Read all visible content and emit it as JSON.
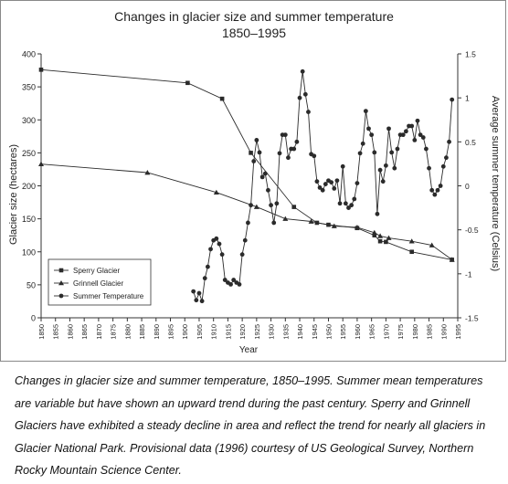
{
  "chart_data": {
    "type": "line",
    "title": "Changes in glacier size and summer temperature",
    "subtitle": "1850–1995",
    "xlabel": "Year",
    "ylabel": "Glacier size (hectares)",
    "y2label": "Average summer temperature (Celsius)",
    "xlim": [
      1850,
      1995
    ],
    "ylim": [
      0,
      400
    ],
    "y2lim": [
      -1.5,
      1.5
    ],
    "x_ticks": [
      1850,
      1855,
      1860,
      1865,
      1870,
      1875,
      1880,
      1885,
      1890,
      1895,
      1900,
      1905,
      1910,
      1915,
      1920,
      1925,
      1930,
      1935,
      1940,
      1945,
      1950,
      1955,
      1960,
      1965,
      1970,
      1975,
      1980,
      1985,
      1990,
      1995
    ],
    "y_ticks": [
      0,
      50,
      100,
      150,
      200,
      250,
      300,
      350,
      400
    ],
    "y2_ticks": [
      "-1.5",
      "-1",
      "-0.5",
      "0",
      "0.5",
      "1",
      "1.5"
    ],
    "grid": false,
    "legend_position": "bottom-left",
    "series": [
      {
        "name": "Sperry Glacier",
        "marker": "square",
        "axis": "left",
        "x": [
          1850,
          1901,
          1913,
          1923,
          1938,
          1946,
          1950,
          1960,
          1966,
          1968,
          1970,
          1979,
          1993
        ],
        "values": [
          376,
          356,
          332,
          250,
          168,
          144,
          141,
          136,
          125,
          116,
          115,
          100,
          88
        ]
      },
      {
        "name": "Grinnell Glacier",
        "marker": "triangle",
        "axis": "left",
        "x": [
          1850,
          1887,
          1911,
          1925,
          1935,
          1944,
          1952,
          1960,
          1966,
          1968,
          1971,
          1979,
          1986,
          1993
        ],
        "values": [
          233,
          220,
          190,
          168,
          150,
          146,
          139,
          137,
          129,
          124,
          121,
          116,
          110,
          88
        ]
      },
      {
        "name": "Summer Temperature",
        "marker": "circle",
        "axis": "right",
        "x": [
          1903,
          1904,
          1905,
          1906,
          1907,
          1908,
          1909,
          1910,
          1911,
          1912,
          1913,
          1914,
          1915,
          1916,
          1917,
          1918,
          1919,
          1920,
          1921,
          1922,
          1923,
          1924,
          1925,
          1926,
          1927,
          1928,
          1929,
          1930,
          1931,
          1932,
          1933,
          1934,
          1935,
          1936,
          1937,
          1938,
          1939,
          1940,
          1941,
          1942,
          1943,
          1944,
          1945,
          1946,
          1947,
          1948,
          1949,
          1950,
          1951,
          1952,
          1953,
          1954,
          1955,
          1956,
          1957,
          1958,
          1959,
          1960,
          1961,
          1962,
          1963,
          1964,
          1965,
          1966,
          1967,
          1968,
          1969,
          1970,
          1971,
          1972,
          1973,
          1974,
          1975,
          1976,
          1977,
          1978,
          1979,
          1980,
          1981,
          1982,
          1983,
          1984,
          1985,
          1986,
          1987,
          1988,
          1989,
          1990,
          1991,
          1992,
          1993
        ],
        "values": [
          -1.2,
          -1.3,
          -1.22,
          -1.31,
          -1.05,
          -0.92,
          -0.72,
          -0.62,
          -0.6,
          -0.66,
          -0.78,
          -1.07,
          -1.1,
          -1.12,
          -1.07,
          -1.1,
          -1.12,
          -0.78,
          -0.62,
          -0.42,
          -0.22,
          0.28,
          0.52,
          0.38,
          0.1,
          0.14,
          -0.05,
          -0.22,
          -0.42,
          -0.2,
          0.37,
          0.58,
          0.58,
          0.32,
          0.42,
          0.42,
          0.5,
          1.0,
          1.3,
          1.04,
          0.84,
          0.36,
          0.34,
          0.05,
          -0.02,
          -0.05,
          0.02,
          0.06,
          0.04,
          -0.03,
          0.06,
          -0.2,
          0.22,
          -0.2,
          -0.25,
          -0.22,
          -0.15,
          0.03,
          0.37,
          0.48,
          0.85,
          0.65,
          0.58,
          0.38,
          -0.32,
          0.18,
          0.05,
          0.23,
          0.65,
          0.38,
          0.2,
          0.42,
          0.58,
          0.58,
          0.62,
          0.68,
          0.68,
          0.52,
          0.74,
          0.58,
          0.55,
          0.42,
          0.2,
          -0.05,
          -0.1,
          -0.05,
          0.0,
          0.22,
          0.32,
          0.5,
          0.98
        ]
      }
    ]
  },
  "caption": "Changes in glacier size and summer temperature, 1850–1995. Summer mean temperatures are variable but have shown an upward trend during the past century. Sperry and Grinnell Glaciers have exhibited a steady decline in area and reflect the trend for nearly all glaciers in Glacier National Park. Provisional data (1996) courtesy of US Geological Survey, Northern Rocky Mountain Science Center.",
  "colors": {
    "line": "#2b2b2b",
    "axis": "#333333",
    "text": "#222222"
  }
}
